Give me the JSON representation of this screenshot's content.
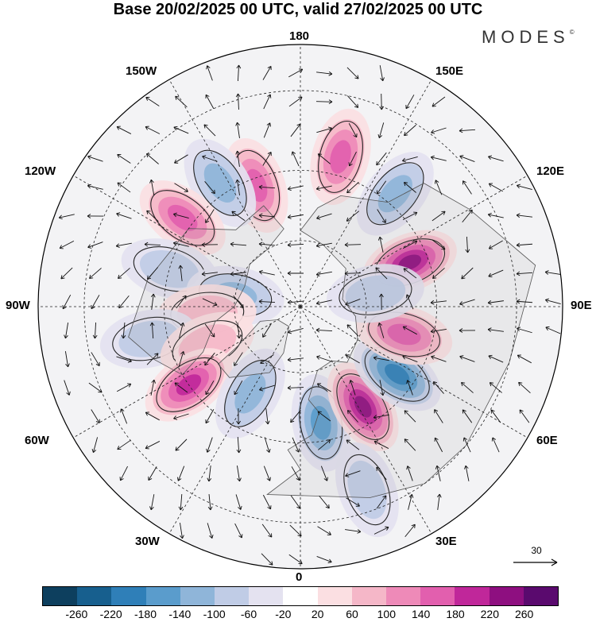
{
  "title": "Base 20/02/2025 00 UTC, valid 27/02/2025 00 UTC",
  "brand": "MODES",
  "brand_mark": "©",
  "longitude_labels": {
    "top": "180",
    "top_left": "150W",
    "top_right": "150E",
    "upper_left": "120W",
    "upper_right": "120E",
    "left": "90W",
    "right": "90E",
    "lower_left": "60W",
    "lower_right": "60E",
    "bottom_left": "30W",
    "bottom_right": "30E",
    "bottom": "0"
  },
  "reference_vector": "30",
  "colorbar": {
    "tick_labels": [
      "-260",
      "-220",
      "-180",
      "-140",
      "-100",
      "-60",
      "-20",
      "20",
      "60",
      "100",
      "140",
      "180",
      "220",
      "260"
    ],
    "colors": [
      "#0d3f5e",
      "#175f8e",
      "#2f7fb8",
      "#5a9ccc",
      "#8fb5d9",
      "#c0cce6",
      "#e4e2f0",
      "#ffffff",
      "#fbdfe2",
      "#f5b7c8",
      "#ee8ab8",
      "#e25fae",
      "#c0279a",
      "#8e0f80",
      "#5a0a6e"
    ]
  },
  "map_data": {
    "projection": "north-polar-stereographic",
    "anomalies": [
      {
        "lon": 112,
        "lat": 55,
        "value": 260
      },
      {
        "lon": 140,
        "lat": 47,
        "value": -140
      },
      {
        "lon": 165,
        "lat": 45,
        "value": 160
      },
      {
        "lon": 200,
        "lat": 52,
        "value": 160
      },
      {
        "lon": 213,
        "lat": 47,
        "value": -120
      },
      {
        "lon": 233,
        "lat": 47,
        "value": 180
      },
      {
        "lon": 254,
        "lat": 50,
        "value": -100
      },
      {
        "lon": 260,
        "lat": 70,
        "value": -120
      },
      {
        "lon": 274,
        "lat": 62,
        "value": 100
      },
      {
        "lon": 282,
        "lat": 45,
        "value": -100
      },
      {
        "lon": 292,
        "lat": 60,
        "value": 90
      },
      {
        "lon": 305,
        "lat": 50,
        "value": 200
      },
      {
        "lon": 330,
        "lat": 60,
        "value": -140
      },
      {
        "lon": 10,
        "lat": 55,
        "value": -160
      },
      {
        "lon": 32,
        "lat": 55,
        "value": 240
      },
      {
        "lon": 55,
        "lat": 55,
        "value": -200
      },
      {
        "lon": 75,
        "lat": 58,
        "value": 160
      },
      {
        "lon": 100,
        "lat": 67,
        "value": -100
      },
      {
        "lon": 20,
        "lat": 35,
        "value": -80
      }
    ]
  }
}
